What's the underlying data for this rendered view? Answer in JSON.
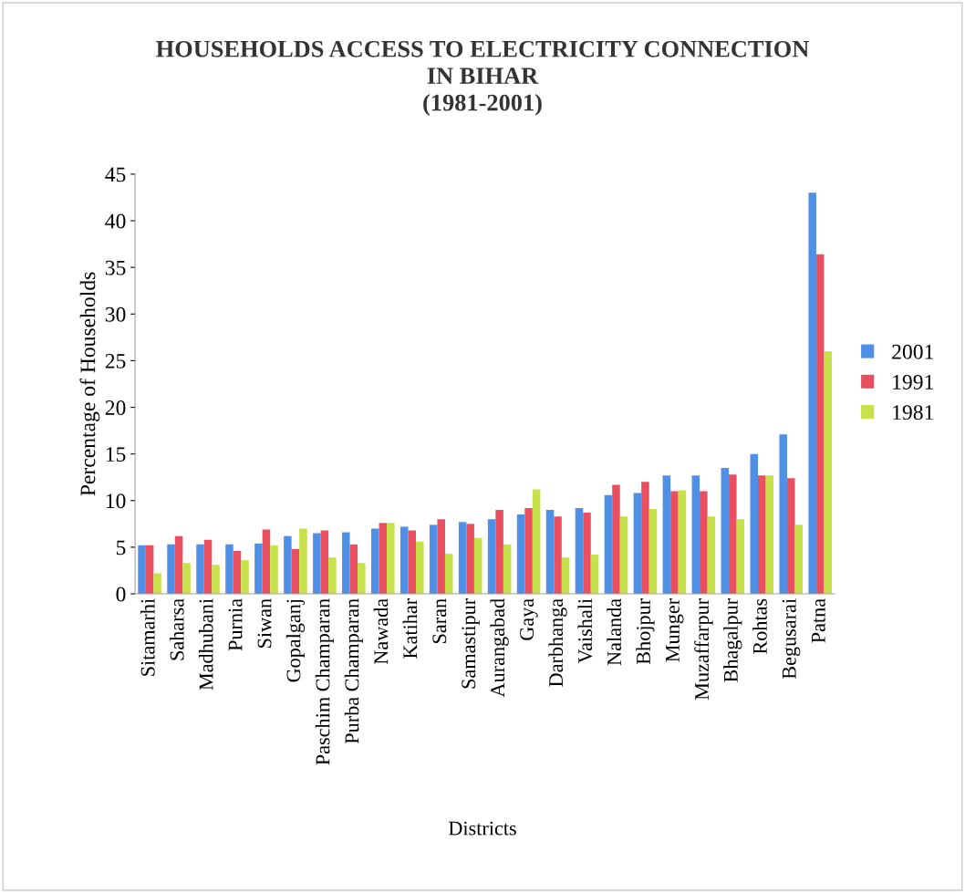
{
  "chart_data": {
    "type": "bar",
    "title": "HOUSEHOLDS ACCESS TO ELECTRICITY CONNECTION\nIN BIHAR\n(1981-2001)",
    "xlabel": "Districts",
    "ylabel": "Percentage of Households",
    "categories": [
      "Sitamarhi",
      "Saharsa",
      "Madhubani",
      "Purnia",
      "Siwan",
      "Gopalganj",
      "Paschim Champaran",
      "Purba Champaran",
      "Nawada",
      "Katihar",
      "Saran",
      "Samastipur",
      "Aurangabad",
      "Gaya",
      "Darbhanga",
      "Vaishali",
      "Nalanda",
      "Bhojpur",
      "Munger",
      "Muzaffarpur",
      "Bhagalpur",
      "Rohtas",
      "Begusarai",
      "Patna"
    ],
    "series": [
      {
        "name": "2001",
        "color": "#4f8fe6",
        "values": [
          5.2,
          5.3,
          5.3,
          5.3,
          5.4,
          6.2,
          6.5,
          6.6,
          7.0,
          7.2,
          7.4,
          7.7,
          8.0,
          8.5,
          9.0,
          9.2,
          10.6,
          10.8,
          12.7,
          12.7,
          13.5,
          15.0,
          17.1,
          43.0
        ]
      },
      {
        "name": "1991",
        "color": "#e8505f",
        "values": [
          5.2,
          6.2,
          5.8,
          4.6,
          6.9,
          4.8,
          6.8,
          5.3,
          7.6,
          6.8,
          8.0,
          7.5,
          9.0,
          9.2,
          8.3,
          8.7,
          11.7,
          12.0,
          11.0,
          11.0,
          12.8,
          12.7,
          12.4,
          36.4
        ]
      },
      {
        "name": "1981",
        "color": "#c8e04a",
        "values": [
          2.2,
          3.3,
          3.1,
          3.6,
          5.2,
          7.0,
          3.9,
          3.3,
          7.6,
          5.6,
          4.3,
          6.0,
          5.3,
          11.2,
          3.9,
          4.2,
          8.3,
          9.1,
          11.1,
          8.3,
          8.0,
          12.7,
          7.4,
          26.0
        ]
      }
    ],
    "ylim": [
      0,
      45
    ],
    "yticks": [
      0,
      5,
      10,
      15,
      20,
      25,
      30,
      35,
      40,
      45
    ],
    "grid": false,
    "legend": "right"
  }
}
